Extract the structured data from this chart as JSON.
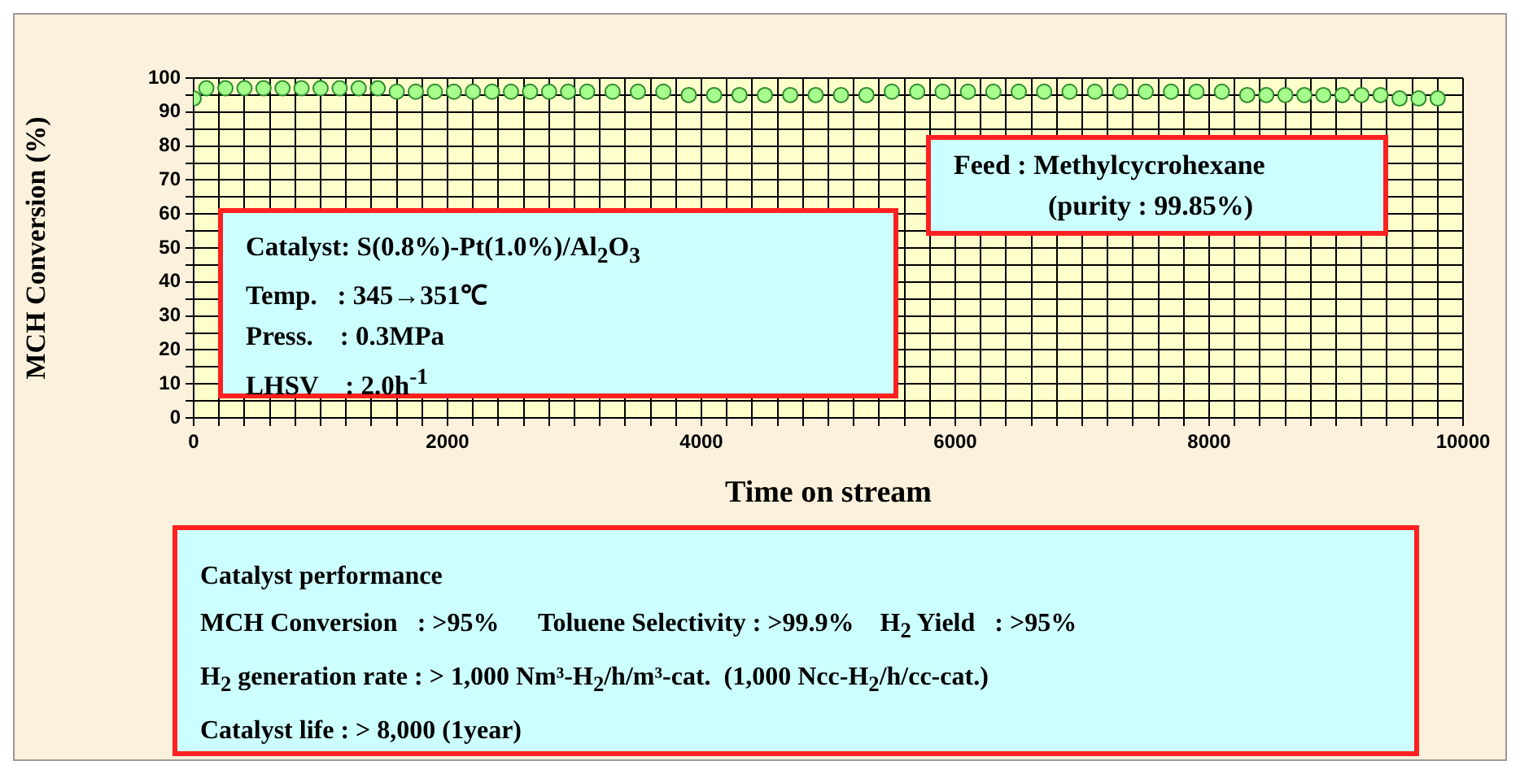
{
  "chart_data": {
    "type": "scatter",
    "xlabel": "Time on stream",
    "ylabel": "MCH Conversion (%)",
    "x": [
      0,
      100,
      250,
      400,
      550,
      700,
      850,
      1000,
      1150,
      1300,
      1450,
      1600,
      1750,
      1900,
      2050,
      2200,
      2350,
      2500,
      2650,
      2800,
      2950,
      3100,
      3300,
      3500,
      3700,
      3900,
      4100,
      4300,
      4500,
      4700,
      4900,
      5100,
      5300,
      5500,
      5700,
      5900,
      6100,
      6300,
      6500,
      6700,
      6900,
      7100,
      7300,
      7500,
      7700,
      7900,
      8100,
      8300,
      8450,
      8600,
      8750,
      8900,
      9050,
      9200,
      9350,
      9500,
      9650,
      9800
    ],
    "series": [
      {
        "color": "#a6ff8c",
        "values": [
          94,
          97,
          97,
          97,
          97,
          97,
          97,
          97,
          97,
          97,
          97,
          96,
          96,
          96,
          96,
          96,
          96,
          96,
          96,
          96,
          96,
          96,
          96,
          96,
          96,
          95,
          95,
          95,
          95,
          95,
          95,
          95,
          95,
          96,
          96,
          96,
          96,
          96,
          96,
          96,
          96,
          96,
          96,
          96,
          96,
          96,
          96,
          95,
          95,
          95,
          95,
          95,
          95,
          95,
          95,
          94,
          94,
          94
        ]
      }
    ],
    "marker": "circle",
    "grid": true,
    "xlim": [
      0,
      10000
    ],
    "ylim": [
      0,
      100
    ],
    "xticks": [
      0,
      {
        "value": 200,
        "label": null
      },
      {
        "value": 400,
        "label": null
      },
      {
        "value": 600,
        "label": null
      },
      {
        "value": 800,
        "label": null
      },
      {
        "value": 1000,
        "label": null
      },
      {
        "value": 1200,
        "label": null
      },
      {
        "value": 1400,
        "label": null
      },
      {
        "value": 1600,
        "label": null
      },
      {
        "value": 1800,
        "label": null
      },
      2000,
      {
        "value": 2200,
        "label": null
      },
      {
        "value": 2400,
        "label": null
      },
      {
        "value": 2600,
        "label": null
      },
      {
        "value": 2800,
        "label": null
      },
      {
        "value": 3000,
        "label": null
      },
      {
        "value": 3200,
        "label": null
      },
      {
        "value": 3400,
        "label": null
      },
      {
        "value": 3600,
        "label": null
      },
      {
        "value": 3800,
        "label": null
      },
      4000,
      {
        "value": 4200,
        "label": null
      },
      {
        "value": 4400,
        "label": null
      },
      {
        "value": 4600,
        "label": null
      },
      {
        "value": 4800,
        "label": null
      },
      {
        "value": 5000,
        "label": null
      },
      {
        "value": 5200,
        "label": null
      },
      {
        "value": 5400,
        "label": null
      },
      {
        "value": 5600,
        "label": null
      },
      {
        "value": 5800,
        "label": null
      },
      6000,
      {
        "value": 6200,
        "label": null
      },
      {
        "value": 6400,
        "label": null
      },
      {
        "value": 6600,
        "label": null
      },
      {
        "value": 6800,
        "label": null
      },
      {
        "value": 7000,
        "label": null
      },
      {
        "value": 7200,
        "label": null
      },
      {
        "value": 7400,
        "label": null
      },
      {
        "value": 7600,
        "label": null
      },
      {
        "value": 7800,
        "label": null
      },
      8000,
      {
        "value": 8200,
        "label": null
      },
      {
        "value": 8400,
        "label": null
      },
      {
        "value": 8600,
        "label": null
      },
      {
        "value": 8800,
        "label": null
      },
      {
        "value": 9000,
        "label": null
      },
      {
        "value": 9200,
        "label": null
      },
      {
        "value": 9400,
        "label": null
      },
      {
        "value": 9600,
        "label": null
      },
      {
        "value": 9800,
        "label": null
      },
      10000
    ],
    "yticks": [
      0,
      {
        "value": 5,
        "label": null
      },
      10,
      {
        "value": 15,
        "label": null
      },
      20,
      {
        "value": 25,
        "label": null
      },
      30,
      {
        "value": 35,
        "label": null
      },
      40,
      {
        "value": 45,
        "label": null
      },
      50,
      {
        "value": 55,
        "label": null
      },
      60,
      {
        "value": 65,
        "label": null
      },
      70,
      {
        "value": 75,
        "label": null
      },
      80,
      {
        "value": 85,
        "label": null
      },
      90,
      {
        "value": 95,
        "label": null
      },
      100
    ],
    "annotations": [
      "Catalyst: S(0.8%)-Pt(1.0%)/Al$_{2}$O$_{3}$",
      "Temp.   : 345→351℃",
      "Press.    : 0.3MPa",
      "LHSV    : 2.0h$^{-1}$",
      "Feed : Methylcycrohexane",
      "(purity : 99.85%)",
      "Catalyst performance",
      "MCH Conversion   : >95%      Toluene Selectivity : >99.9%    H$_{2}$ Yield   : >95%",
      "H$_{2}$ generation rate : > 1,000 Nm³-H$_{2}$/h/m³-cat.  (1,000 Ncc-H$_{2}$/h/cc-cat.)",
      "Catalyst life : > 8,000 (1year)"
    ]
  }
}
